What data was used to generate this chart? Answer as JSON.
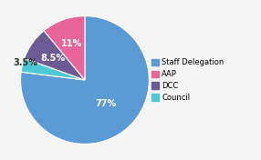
{
  "labels": [
    "Staff Delegation",
    "AAP",
    "DCC",
    "Council"
  ],
  "values": [
    77,
    11,
    8.5,
    3.5
  ],
  "colors": [
    "#5b9bd5",
    "#e9649a",
    "#6b5b95",
    "#4ec8d4"
  ],
  "pct_labels": [
    "77%",
    "11%",
    "8.5%",
    "3.5%"
  ],
  "background_color": "#f5f5f5",
  "legend_fontsize": 6.0,
  "pct_fontsize": 7.0,
  "startangle": 90,
  "order": [
    0,
    3,
    2,
    1
  ]
}
